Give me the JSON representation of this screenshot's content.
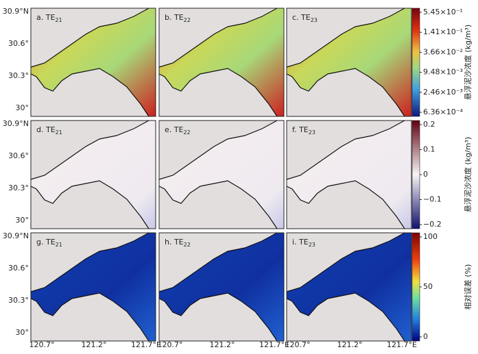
{
  "panels": [
    {
      "prefix": "a. TE",
      "sub": "21"
    },
    {
      "prefix": "b. TE",
      "sub": "22"
    },
    {
      "prefix": "c. TE",
      "sub": "23"
    },
    {
      "prefix": "d. TE",
      "sub": "21"
    },
    {
      "prefix": "e. TE",
      "sub": "22"
    },
    {
      "prefix": "f. TE",
      "sub": "23"
    },
    {
      "prefix": "g. TE",
      "sub": "21"
    },
    {
      "prefix": "h. TE",
      "sub": "22"
    },
    {
      "prefix": "i. TE",
      "sub": "23"
    }
  ],
  "lat_ticks": [
    "30.9°N",
    "30.6°",
    "30.3°",
    "30°"
  ],
  "lon_ticks": [
    "120.7°",
    "121.2°",
    "121.7°E"
  ],
  "colorbars": [
    {
      "title": "悬浮泥沙浓度 (kg/m³)",
      "ticks": [
        "5.45×10⁻¹",
        "1.41×10⁻¹",
        "3.66×10⁻²",
        "9.48×10⁻³",
        "2.46×10⁻³",
        "6.36×10⁻⁴"
      ]
    },
    {
      "title": "悬浮泥沙浓度 (kg/m³)",
      "ticks": [
        "0.2",
        "0.1",
        "0",
        "−0.1",
        "−0.2"
      ]
    },
    {
      "title": "相对误差 (%)",
      "ticks": [
        "100",
        "50",
        "0"
      ]
    }
  ]
}
